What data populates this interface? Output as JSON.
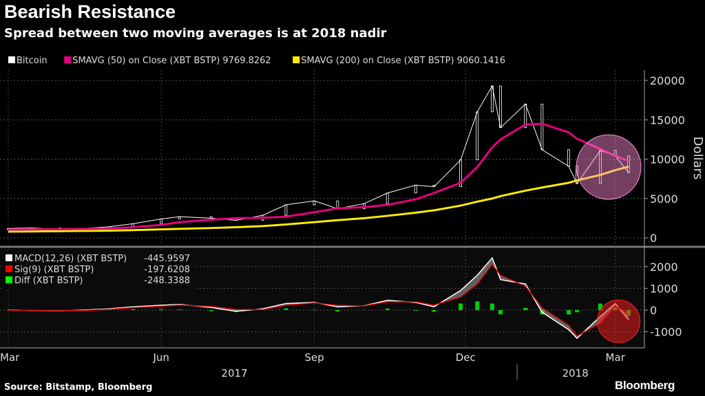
{
  "title": "Bearish Resistance",
  "subtitle": "Spread between two moving averages is at 2018 nadir",
  "source": "Source: Bitstamp, Bloomberg",
  "logo": "Bloomberg",
  "chart_data": [
    {
      "type": "line",
      "legend": [
        {
          "label": "Bitcoin",
          "color": "#ffffff"
        },
        {
          "label": "SMAVG (50) on Close (XBT BSTP) 9769.8262",
          "color": "#e6007e"
        },
        {
          "label": "SMAVG (200) on Close (XBT BSTP) 9060.1416",
          "color": "#ffed00"
        }
      ],
      "ylabel": "Dollars",
      "ylim": [
        0,
        20000
      ],
      "yticks": [
        0,
        5000,
        10000,
        15000,
        20000
      ],
      "x": [
        "2017-03-01",
        "2017-03-15",
        "2017-04-01",
        "2017-04-15",
        "2017-05-01",
        "2017-05-15",
        "2017-06-01",
        "2017-06-12",
        "2017-07-01",
        "2017-07-16",
        "2017-08-01",
        "2017-08-15",
        "2017-09-01",
        "2017-09-15",
        "2017-10-01",
        "2017-10-15",
        "2017-11-01",
        "2017-11-12",
        "2017-11-28",
        "2017-12-08",
        "2017-12-17",
        "2017-12-22",
        "2018-01-06",
        "2018-01-16",
        "2018-02-01",
        "2018-02-06",
        "2018-02-20",
        "2018-03-01",
        "2018-03-09"
      ],
      "series": [
        {
          "name": "Bitcoin",
          "values": [
            1200,
            1250,
            1080,
            1190,
            1420,
            1800,
            2400,
            2700,
            2500,
            2230,
            2870,
            4200,
            4700,
            3700,
            4350,
            5700,
            6700,
            6500,
            9900,
            16000,
            19300,
            14000,
            17000,
            11200,
            9100,
            6900,
            11100,
            10400,
            8300
          ]
        },
        {
          "name": "SMAVG (50) on Close (XBT BSTP)",
          "values": [
            1050,
            1080,
            1100,
            1130,
            1200,
            1350,
            1650,
            2000,
            2300,
            2500,
            2550,
            2700,
            3250,
            3750,
            3900,
            4200,
            4900,
            5700,
            7000,
            9000,
            11500,
            12500,
            14400,
            14500,
            13400,
            12600,
            11300,
            10400,
            9770
          ]
        },
        {
          "name": "SMAVG (200) on Close (XBT BSTP)",
          "values": [
            800,
            820,
            850,
            880,
            920,
            980,
            1080,
            1150,
            1250,
            1350,
            1500,
            1700,
            2000,
            2250,
            2500,
            2800,
            3200,
            3500,
            4100,
            4600,
            5000,
            5300,
            6000,
            6400,
            7000,
            7300,
            8000,
            8600,
            9060
          ]
        }
      ],
      "highlight": {
        "date": "2018-02-25",
        "value": 9000,
        "color": "#ff8dd8"
      }
    },
    {
      "type": "line+bar",
      "legend": [
        {
          "label": "MACD(12,26) (XBT BSTP)",
          "value": "-445.9597",
          "color": "#ffffff"
        },
        {
          "label": "Sig(9) (XBT BSTP)",
          "value": "-197.6208",
          "color": "#ff0000"
        },
        {
          "label": "Diff (XBT BSTP)",
          "value": "-248.3388",
          "color": "#00ff00"
        }
      ],
      "ylim": [
        -1700,
        2800
      ],
      "yticks": [
        -1000,
        0,
        1000,
        2000
      ],
      "x": [
        "2017-03-01",
        "2017-03-15",
        "2017-04-01",
        "2017-04-15",
        "2017-05-01",
        "2017-05-15",
        "2017-06-01",
        "2017-06-12",
        "2017-07-01",
        "2017-07-16",
        "2017-08-01",
        "2017-08-15",
        "2017-09-01",
        "2017-09-15",
        "2017-10-01",
        "2017-10-15",
        "2017-11-01",
        "2017-11-12",
        "2017-11-28",
        "2017-12-08",
        "2017-12-17",
        "2017-12-22",
        "2018-01-06",
        "2018-01-16",
        "2018-02-01",
        "2018-02-06",
        "2018-02-20",
        "2018-03-01",
        "2018-03-09"
      ],
      "series": [
        {
          "name": "MACD(12,26) (XBT BSTP)",
          "values": [
            10,
            -20,
            -40,
            0,
            60,
            150,
            220,
            260,
            120,
            -60,
            60,
            300,
            350,
            150,
            200,
            450,
            350,
            150,
            900,
            1600,
            2400,
            1400,
            1200,
            -100,
            -900,
            -1300,
            -300,
            300,
            -446
          ]
        },
        {
          "name": "Sig(9) (XBT BSTP)",
          "values": [
            0,
            -10,
            -30,
            -20,
            30,
            110,
            180,
            230,
            170,
            30,
            20,
            220,
            330,
            220,
            190,
            380,
            380,
            230,
            600,
            1200,
            2100,
            1600,
            1100,
            100,
            -700,
            -1200,
            -600,
            200,
            -198
          ]
        },
        {
          "name": "Diff (XBT BSTP)",
          "values": [
            10,
            -10,
            -10,
            20,
            30,
            40,
            40,
            30,
            -50,
            -90,
            40,
            80,
            20,
            -70,
            10,
            70,
            -30,
            -80,
            300,
            400,
            300,
            -200,
            100,
            -200,
            -200,
            -100,
            300,
            100,
            -248
          ]
        }
      ],
      "highlight": {
        "date": "2018-03-03",
        "value": -200,
        "color": "#ff2020"
      }
    }
  ],
  "xaxis": {
    "months": [
      {
        "label": "Mar",
        "date": "2017-03-01"
      },
      {
        "label": "Jun",
        "date": "2017-06-01"
      },
      {
        "label": "Sep",
        "date": "2017-09-01"
      },
      {
        "label": "Dec",
        "date": "2017-12-01"
      },
      {
        "label": "Mar",
        "date": "2018-03-01"
      }
    ],
    "years": [
      {
        "label": "2017",
        "date": "2017-07-15"
      },
      {
        "label": "2018",
        "date": "2018-02-05"
      }
    ]
  }
}
